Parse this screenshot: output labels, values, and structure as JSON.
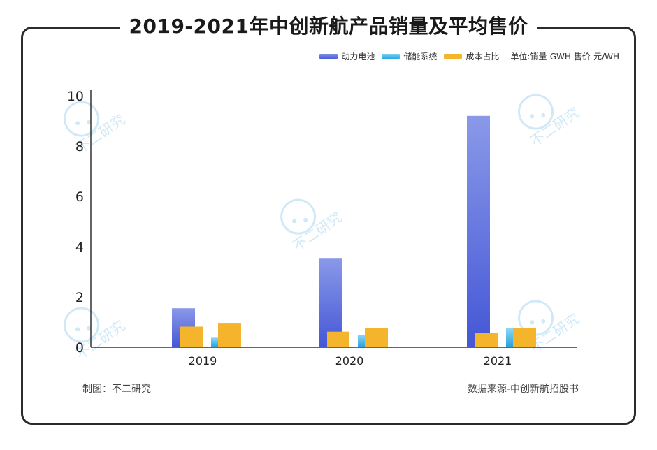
{
  "title": "2019-2021年中创新航产品销量及平均售价",
  "legend": {
    "items": [
      {
        "label": "动力电池",
        "color": "#5b6fdc"
      },
      {
        "label": "储能系统",
        "color": "#3fb6e8"
      },
      {
        "label": "成本占比",
        "color": "#f4b52c"
      }
    ],
    "unit_note": "单位:销量-GWH  售价-元/WH"
  },
  "footer": {
    "maker": "制图：不二研究",
    "source": "数据来源-中创新航招股书"
  },
  "watermark_text": "不二研究",
  "chart_data": {
    "type": "bar",
    "categories": [
      "2019",
      "2020",
      "2021"
    ],
    "ylim": [
      0,
      10
    ],
    "yticks": [
      0,
      2,
      4,
      6,
      8,
      10
    ],
    "grid": false,
    "legend_position": "top-right",
    "series": [
      {
        "name": "动力电池",
        "values": [
          1.55,
          3.55,
          9.2
        ],
        "color": "#5b6fdc",
        "group": "volume"
      },
      {
        "name": "储能系统",
        "values": [
          0.38,
          0.5,
          0.75
        ],
        "color": "#3fb6e8",
        "group": "volume"
      },
      {
        "name": "",
        "values": [
          0.82,
          0.62,
          0.58
        ],
        "color": "#f4b52c",
        "group": "volume"
      },
      {
        "name": "成本占比",
        "values": [
          0.97,
          0.76,
          0.75
        ],
        "color": "#f4b52c",
        "group": "price"
      }
    ]
  }
}
